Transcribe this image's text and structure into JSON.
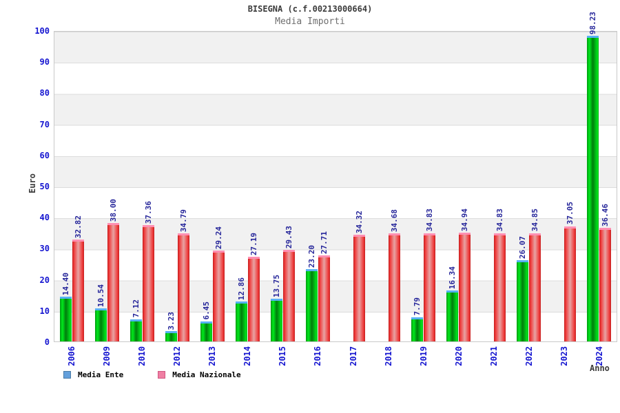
{
  "header": {
    "title": "BISEGNA (c.f.00213000664)",
    "subtitle": "Media Importi"
  },
  "axes": {
    "y_title": "Euro",
    "x_title": "Anno",
    "y_ticks": [
      0,
      10,
      20,
      30,
      40,
      50,
      60,
      70,
      80,
      90,
      100
    ],
    "tick_color": "#1414d0"
  },
  "legend": {
    "items": [
      {
        "label": "Media Ente",
        "fill": "#64a0dc",
        "border": "#4a7ba6"
      },
      {
        "label": "Media Nazionale",
        "fill": "#ef7fa3",
        "border": "#d15580"
      }
    ]
  },
  "colors": {
    "ente_bar_green": "#00b414",
    "nazionale_bar_red": "#e53535",
    "ente_bar_cap": "#55b1f2",
    "nazionale_bar_cap": "#ff8fb2",
    "value_label": "#26269a",
    "band_gray": "#f1f1f1",
    "gridline": "#dcdcdc"
  },
  "chart_data": {
    "type": "bar",
    "title": "BISEGNA (c.f.00213000664)",
    "subtitle": "Media Importi",
    "xlabel": "Anno",
    "ylabel": "Euro",
    "ylim": [
      0,
      100
    ],
    "yticks": [
      0,
      10,
      20,
      30,
      40,
      50,
      60,
      70,
      80,
      90,
      100
    ],
    "grid": "horizontal gridlines with alternating gray/white 10-unit bands",
    "legend_position": "bottom-left",
    "value_labels": "rotated 90deg above each bar, two decimals",
    "categories": [
      "2006",
      "2009",
      "2010",
      "2012",
      "2013",
      "2014",
      "2015",
      "2016",
      "2017",
      "2018",
      "2019",
      "2020",
      "2021",
      "2022",
      "2023",
      "2024"
    ],
    "series": [
      {
        "name": "Media Ente",
        "values": [
          14.4,
          10.54,
          7.12,
          3.23,
          6.45,
          12.86,
          13.75,
          23.2,
          null,
          null,
          7.79,
          16.34,
          null,
          26.07,
          null,
          98.23
        ]
      },
      {
        "name": "Media Nazionale",
        "values": [
          32.82,
          38.0,
          37.36,
          34.79,
          29.24,
          27.19,
          29.43,
          27.71,
          34.32,
          34.68,
          34.83,
          34.94,
          34.83,
          34.85,
          37.05,
          36.46
        ]
      }
    ]
  }
}
